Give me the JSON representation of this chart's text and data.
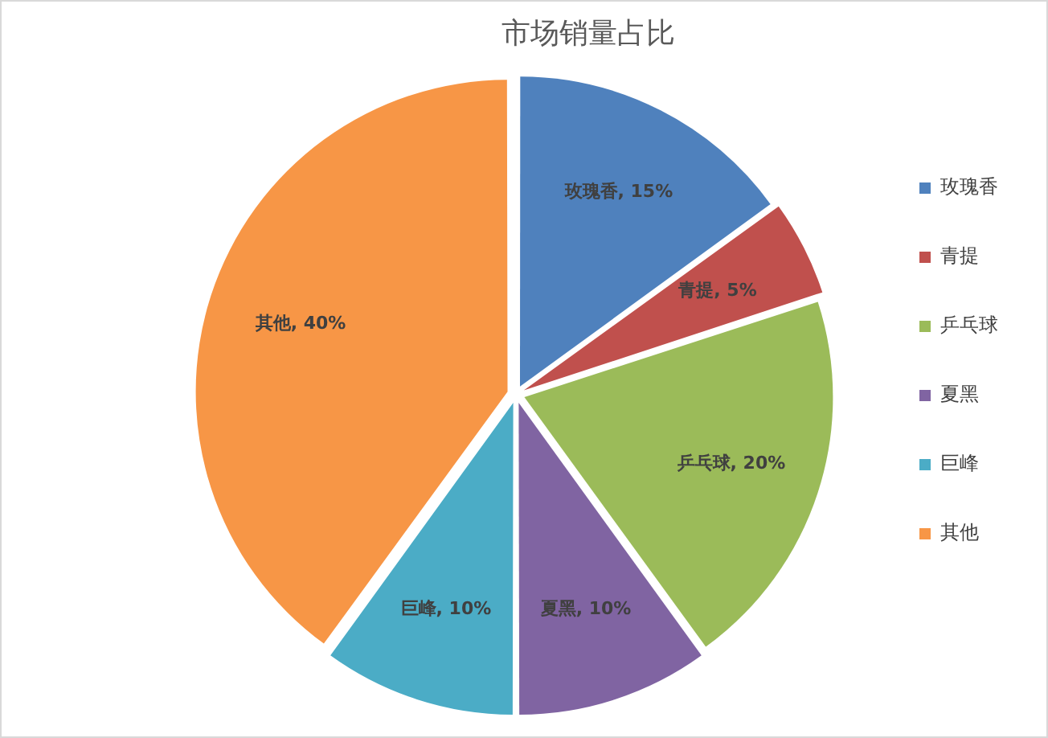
{
  "chart_data": {
    "type": "pie",
    "title": "市场销量占比",
    "categories": [
      "玫瑰香",
      "青提",
      "乒乓球",
      "夏黑",
      "巨峰",
      "其他"
    ],
    "values": [
      15,
      5,
      20,
      10,
      10,
      40
    ],
    "colors": [
      "#4f81bd",
      "#c0504d",
      "#9bbb59",
      "#8064a2",
      "#4bacc6",
      "#f79646"
    ],
    "value_labels": [
      "玫瑰香, 15%",
      "青提, 5%",
      "乒乓球, 20%",
      "夏黑, 10%",
      "巨峰, 10%",
      "其他, 40%"
    ],
    "legend": "right"
  }
}
